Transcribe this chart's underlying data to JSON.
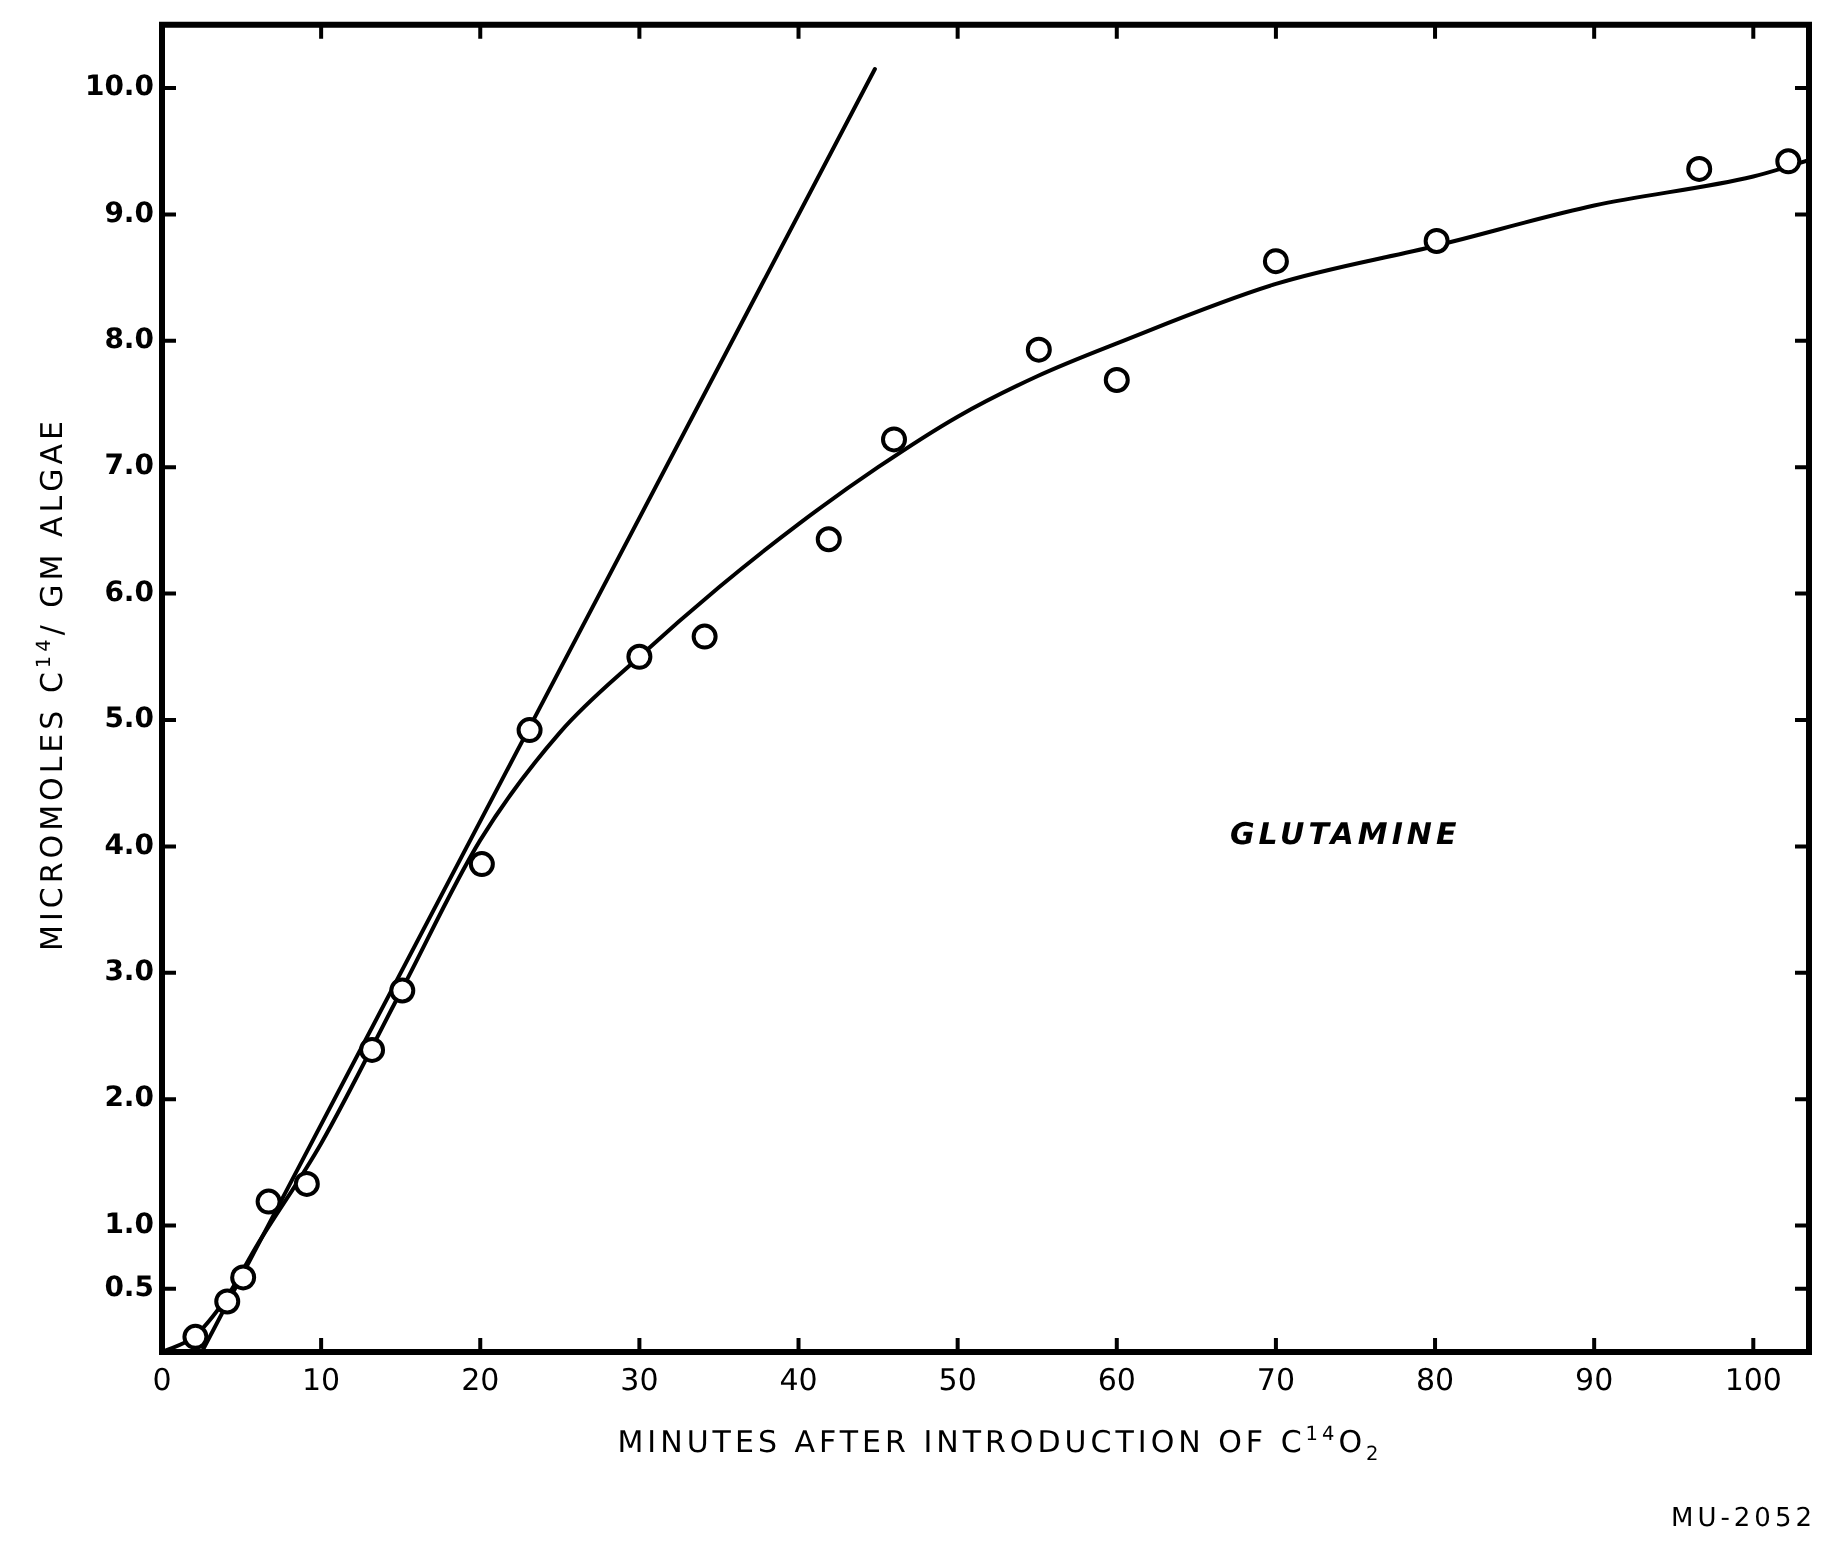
{
  "chart_data": {
    "type": "scatter",
    "xlabel": "MINUTES AFTER INTRODUCTION OF C$^{14}$O$_{2}$",
    "ylabel": "MICROMOLES C$^{14}$/ GM ALGAE",
    "annotations": [
      "GLUTAMINE",
      "MU-2052"
    ],
    "xlim": [
      0,
      103.5
    ],
    "ylim": [
      0,
      10.5
    ],
    "xticks": [
      0,
      10,
      20,
      30,
      40,
      50,
      60,
      70,
      80,
      90,
      100
    ],
    "yticks": [
      {
        "value": 0.5,
        "label": "0.5"
      },
      {
        "value": 1,
        "label": "1.0"
      },
      {
        "value": 2,
        "label": "2.0"
      },
      {
        "value": 3,
        "label": "3.0"
      },
      {
        "value": 4,
        "label": "4.0"
      },
      {
        "value": 5,
        "label": "5.0"
      },
      {
        "value": 6,
        "label": "6.0"
      },
      {
        "value": 7,
        "label": "7.0"
      },
      {
        "value": 8,
        "label": "8.0"
      },
      {
        "value": 9,
        "label": "9.0"
      },
      {
        "value": 10,
        "label": "10.0"
      }
    ],
    "grid": false,
    "legend": false,
    "series": [
      {
        "color": "#000000",
        "marker": "circle",
        "x": [
          2.1,
          4.1,
          5.1,
          6.7,
          9.1,
          13.2,
          15.1,
          20.1,
          23.1,
          30.0,
          34.1,
          41.9,
          46.0,
          55.1,
          60.0,
          70.0,
          80.1,
          96.6,
          102.2
        ],
        "values": [
          0.12,
          0.4,
          0.59,
          1.19,
          1.33,
          2.39,
          2.86,
          3.86,
          4.92,
          5.5,
          5.66,
          6.43,
          7.22,
          7.93,
          7.69,
          8.63,
          8.79,
          9.36,
          9.42
        ]
      },
      {
        "type": "line",
        "color": "#000000",
        "marker": "none",
        "line_style": "solid",
        "x": [
          0,
          2,
          4,
          6,
          10,
          15,
          20,
          25,
          30,
          35,
          40,
          45,
          50,
          55,
          60,
          70,
          80,
          90,
          100,
          103.5
        ],
        "values": [
          0,
          0.12,
          0.42,
          0.85,
          1.65,
          2.85,
          4.05,
          4.9,
          5.5,
          6.05,
          6.55,
          7.0,
          7.4,
          7.72,
          7.98,
          8.45,
          8.75,
          9.07,
          9.3,
          9.43
        ]
      },
      {
        "type": "line",
        "color": "#000000",
        "marker": "none",
        "line_style": "solid",
        "x": [
          2.5,
          44.8
        ],
        "values": [
          0,
          10.15
        ]
      }
    ]
  }
}
